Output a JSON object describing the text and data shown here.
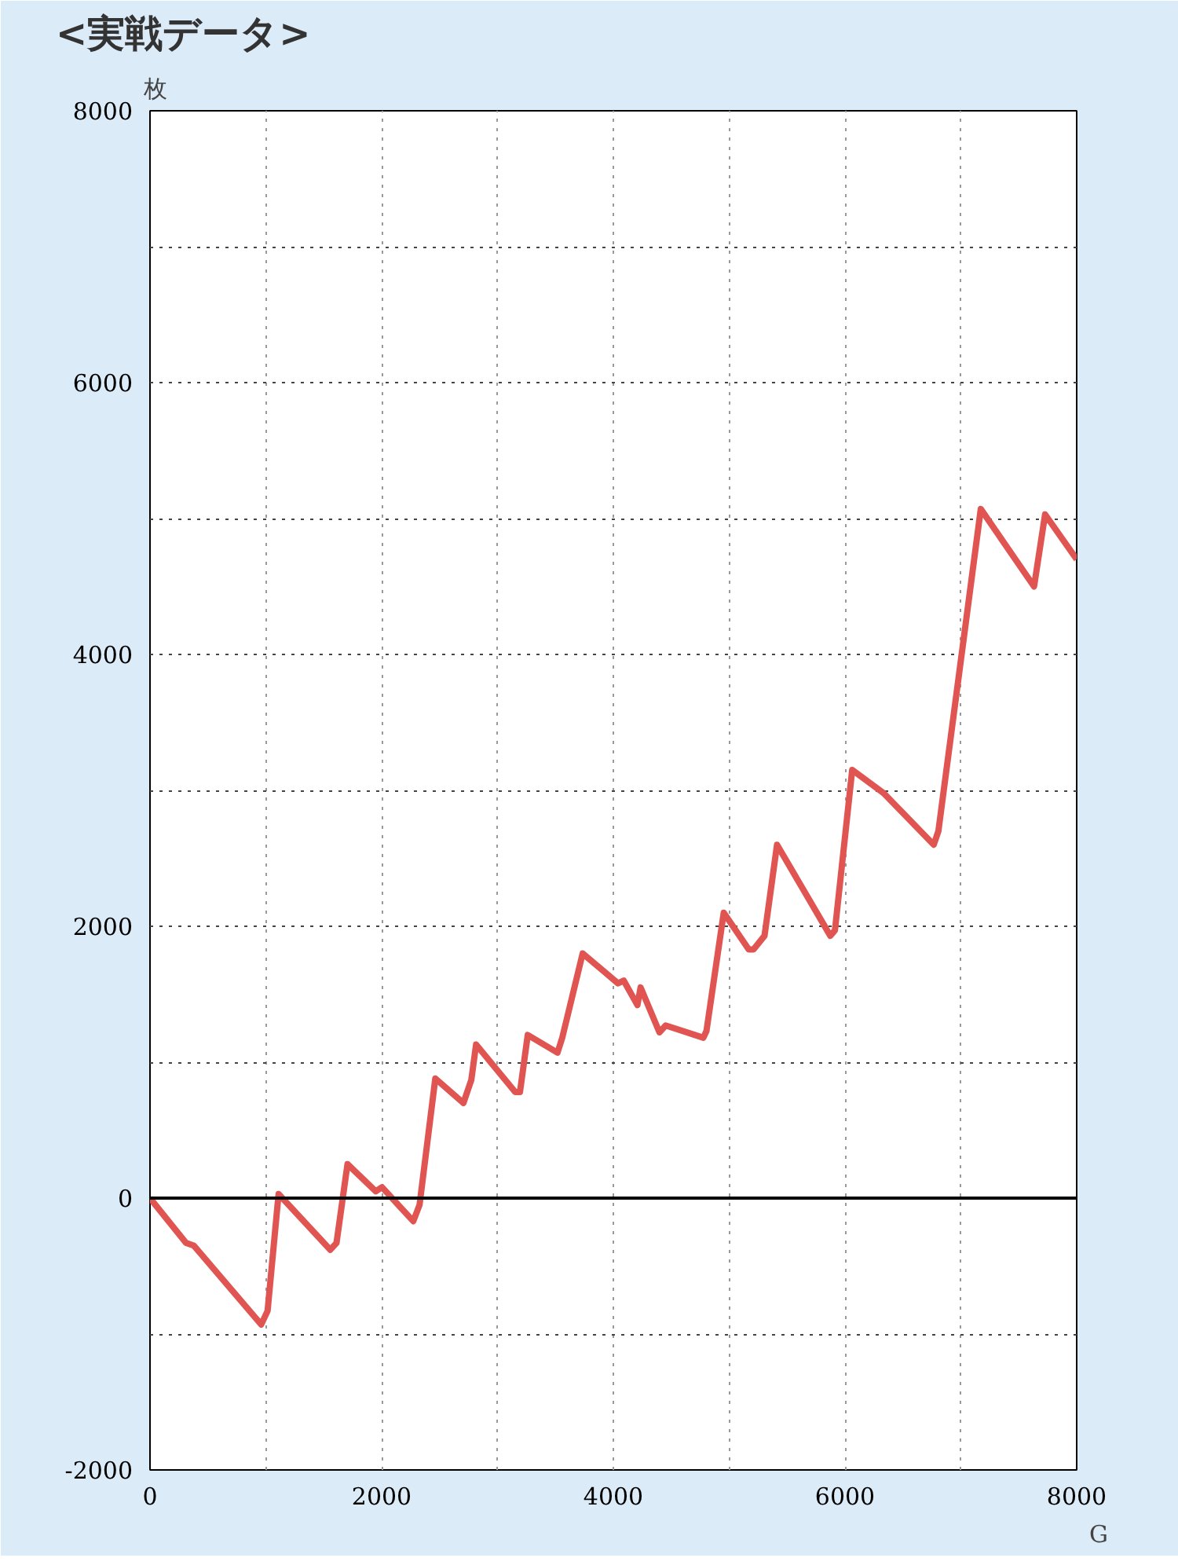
{
  "chart_data": {
    "type": "line",
    "title": "<実戦データ>",
    "xlabel": "G",
    "ylabel": "枚",
    "x": [
      0,
      311,
      379,
      960,
      1015,
      1110,
      1556,
      1610,
      1705,
      1949,
      2003,
      2273,
      2327,
      2463,
      2706,
      2774,
      2815,
      3153,
      3194,
      3261,
      3518,
      3559,
      3735,
      4040,
      4090,
      4208,
      4235,
      4398,
      4452,
      4777,
      4804,
      4953,
      5169,
      5210,
      5305,
      5413,
      5873,
      5913,
      6062,
      6333,
      6766,
      6806,
      7172,
      7632,
      7727,
      8000
    ],
    "series": [
      {
        "color": "#e05552",
        "values": [
          0,
          -330,
          -350,
          -930,
          -830,
          30,
          -380,
          -330,
          250,
          50,
          80,
          -170,
          -50,
          880,
          700,
          870,
          1130,
          780,
          780,
          1200,
          1070,
          1180,
          1800,
          1580,
          1600,
          1420,
          1550,
          1220,
          1270,
          1180,
          1230,
          2100,
          1830,
          1830,
          1930,
          2600,
          1930,
          1970,
          3150,
          2980,
          2600,
          2700,
          5070,
          4500,
          5030,
          4700
        ]
      }
    ],
    "xlim": [
      0,
      8000
    ],
    "ylim": [
      -2000,
      8000
    ],
    "xticks": [
      0,
      {
        "value": 1000,
        "label": null
      },
      2000,
      {
        "value": 3000,
        "label": null
      },
      4000,
      {
        "value": 5000,
        "label": null
      },
      6000,
      {
        "value": 7000,
        "label": null
      },
      8000
    ],
    "yticks": [
      -2000,
      {
        "value": -1000,
        "label": null
      },
      0,
      {
        "value": 1000,
        "label": null
      },
      2000,
      {
        "value": 3000,
        "label": null
      },
      4000,
      {
        "value": 5000,
        "label": null
      },
      6000,
      {
        "value": 7000,
        "label": null
      },
      8000
    ],
    "ref_lines": [
      {
        "axis": "y",
        "value": 0,
        "color": "#000000"
      }
    ],
    "grid": true,
    "marker": "none",
    "line_style": "solid"
  }
}
